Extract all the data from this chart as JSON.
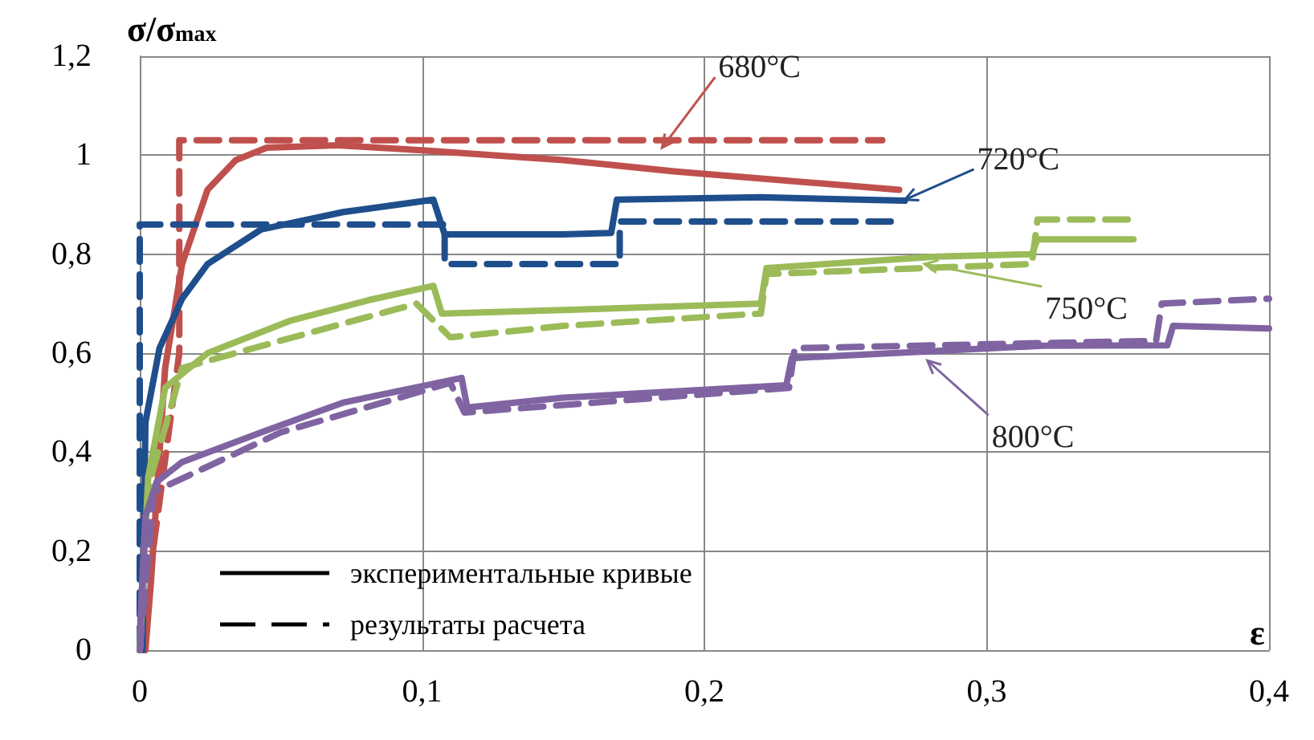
{
  "chart_data": {
    "type": "line",
    "xlabel": "ε",
    "ylabel": "σ/σ$_{max}$",
    "xlim": [
      0,
      0.4
    ],
    "xticks": [
      {
        "value": 0,
        "label": "0"
      },
      {
        "value": 0.1,
        "label": "0,1"
      },
      {
        "value": 0.2,
        "label": "0,2"
      },
      {
        "value": 0.3,
        "label": "0,3"
      },
      {
        "value": 0.4,
        "label": "0,4"
      }
    ],
    "ylim": [
      0,
      1.2
    ],
    "yticks": [
      {
        "value": 0,
        "label": "0"
      },
      {
        "value": 0.2,
        "label": "0,2"
      },
      {
        "value": 0.4,
        "label": "0,4"
      },
      {
        "value": 0.6,
        "label": "0,6"
      },
      {
        "value": 0.8,
        "label": "0,8"
      },
      {
        "value": 1,
        "label": "1"
      },
      {
        "value": 1.2,
        "label": "1,2"
      }
    ],
    "grid": true,
    "marker": "none",
    "series": [
      {
        "color": "#c0504d",
        "line_style": "solid",
        "x": [
          0.002,
          0.004,
          0.009,
          0.015,
          0.024,
          0.034,
          0.045,
          0.07,
          0.1,
          0.15,
          0.19,
          0.269
        ],
        "values": [
          0,
          0.14,
          0.57,
          0.78,
          0.93,
          0.99,
          1.015,
          1.02,
          1.01,
          0.99,
          0.967,
          0.93
        ]
      },
      {
        "color": "#c0504d",
        "line_style": "dashed",
        "x": [
          0,
          0.014,
          0.014,
          0.263
        ],
        "values": [
          0,
          0.6,
          1.03,
          1.03
        ]
      },
      {
        "color": "#1f4e8c",
        "line_style": "solid",
        "x": [
          0.001,
          0.002,
          0.007,
          0.015,
          0.024,
          0.043,
          0.072,
          0.104,
          0.108,
          0.15,
          0.167,
          0.169,
          0.22,
          0.271
        ],
        "values": [
          0,
          0.46,
          0.61,
          0.71,
          0.78,
          0.85,
          0.885,
          0.91,
          0.84,
          0.84,
          0.843,
          0.91,
          0.915,
          0.908
        ]
      },
      {
        "color": "#1f4e8c",
        "line_style": "dashed",
        "x": [
          0,
          0,
          0.108,
          0.108,
          0.17,
          0.17,
          0.266
        ],
        "values": [
          0,
          0.86,
          0.86,
          0.78,
          0.78,
          0.866,
          0.866
        ]
      },
      {
        "color": "#9bbb59",
        "line_style": "solid",
        "x": [
          0,
          0.003,
          0.009,
          0.024,
          0.053,
          0.081,
          0.104,
          0.107,
          0.15,
          0.22,
          0.222,
          0.282,
          0.316,
          0.318,
          0.352
        ],
        "values": [
          0,
          0.35,
          0.53,
          0.6,
          0.665,
          0.707,
          0.736,
          0.68,
          0.687,
          0.7,
          0.772,
          0.795,
          0.8,
          0.83,
          0.83
        ]
      },
      {
        "color": "#9bbb59",
        "line_style": "dashed",
        "x": [
          0,
          0.004,
          0.015,
          0.053,
          0.098,
          0.11,
          0.15,
          0.22,
          0.222,
          0.316,
          0.318,
          0.352
        ],
        "values": [
          0,
          0.35,
          0.57,
          0.63,
          0.7,
          0.632,
          0.655,
          0.68,
          0.76,
          0.78,
          0.87,
          0.87
        ]
      },
      {
        "color": "#8064a2",
        "line_style": "solid",
        "x": [
          0,
          0.002,
          0.006,
          0.015,
          0.043,
          0.072,
          0.114,
          0.116,
          0.15,
          0.229,
          0.231,
          0.32,
          0.364,
          0.366,
          0.4
        ],
        "values": [
          0.03,
          0.27,
          0.34,
          0.38,
          0.44,
          0.5,
          0.55,
          0.49,
          0.51,
          0.535,
          0.59,
          0.615,
          0.616,
          0.655,
          0.65
        ]
      },
      {
        "color": "#8064a2",
        "line_style": "dashed",
        "x": [
          0,
          0.005,
          0.05,
          0.11,
          0.115,
          0.23,
          0.232,
          0.36,
          0.362,
          0.4
        ],
        "values": [
          0,
          0.32,
          0.44,
          0.54,
          0.48,
          0.53,
          0.61,
          0.625,
          0.7,
          0.71
        ]
      }
    ],
    "annotations": [
      {
        "text": "680°C",
        "x": 0.185,
        "y": 1.015
      },
      {
        "text": "720°C",
        "x": 0.271,
        "y": 0.91
      },
      {
        "text": "750°C",
        "x": 0.278,
        "y": 0.78
      },
      {
        "text": "800°C",
        "x": 0.279,
        "y": 0.585
      },
      "экспериментальные кривые",
      "результаты расчета"
    ]
  }
}
